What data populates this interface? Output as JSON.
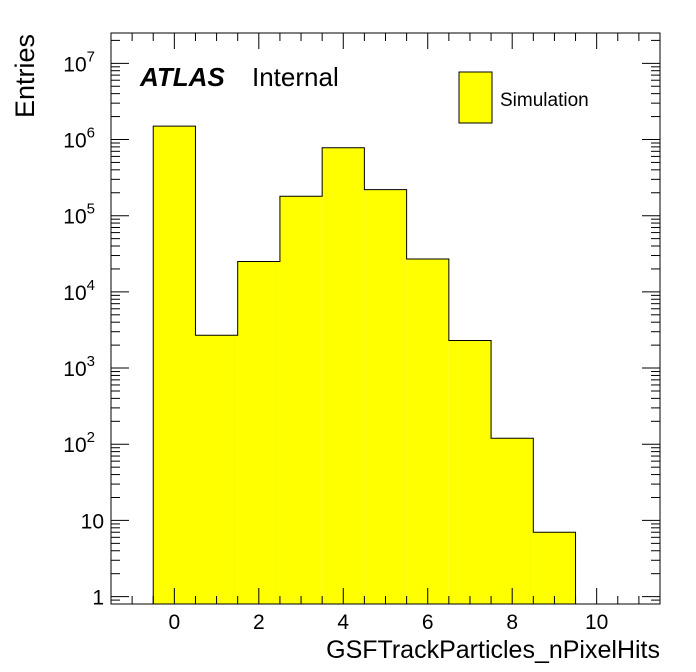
{
  "chart_data": {
    "type": "bar",
    "histogram": true,
    "xlabel": "GSFTrackParticles_nPixelHits",
    "ylabel": "Entries",
    "xlim": [
      -1.5,
      11.5
    ],
    "ylim": [
      0.8,
      25000000
    ],
    "yscale": "log",
    "bin_width": 1,
    "x": [
      0,
      1,
      2,
      3,
      4,
      5,
      6,
      7,
      8,
      9
    ],
    "values": [
      1500000,
      2700,
      25000,
      180000,
      780000,
      220000,
      27000,
      2300,
      120,
      7
    ],
    "fill_color": "#ffff00",
    "edge_color": "#000000",
    "x_ticks": [
      0,
      2,
      4,
      6,
      8,
      10
    ],
    "x_tick_labels": [
      "0",
      "2",
      "4",
      "6",
      "8",
      "10"
    ],
    "y_ticks": [
      {
        "value": 1,
        "base": "1",
        "exp": ""
      },
      {
        "value": 10,
        "base": "10",
        "exp": ""
      },
      {
        "value": 100,
        "base": "10",
        "exp": "2"
      },
      {
        "value": 1000,
        "base": "10",
        "exp": "3"
      },
      {
        "value": 10000,
        "base": "10",
        "exp": "4"
      },
      {
        "value": 100000,
        "base": "10",
        "exp": "5"
      },
      {
        "value": 1000000,
        "base": "10",
        "exp": "6"
      },
      {
        "value": 10000000,
        "base": "10",
        "exp": "7"
      }
    ],
    "legend": {
      "entries": [
        {
          "label": "Simulation",
          "color": "#ffff00"
        }
      ],
      "position": "top-right"
    },
    "annotation": {
      "bold": "ATLAS",
      "normal": "Internal"
    }
  }
}
